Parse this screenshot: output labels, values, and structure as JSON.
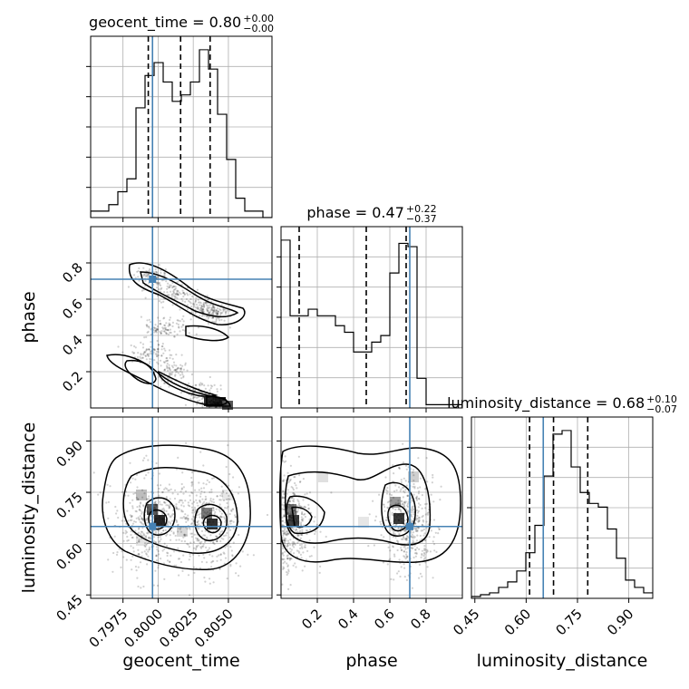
{
  "chart_data": {
    "type": "corner",
    "truth_color": "#4682b4",
    "parameters": [
      {
        "name": "geocent_time",
        "title": "geocent_time = 0.80",
        "title_value": "0.80",
        "title_plus": "+0.00",
        "title_minus": "−0.00",
        "range": [
          0.7952,
          0.8081
        ],
        "ticks": [
          0.7975,
          0.8,
          0.8025,
          0.805
        ],
        "tick_labels": [
          "0.7975",
          "0.8000",
          "0.8025",
          "0.8050"
        ],
        "truth": 0.7996,
        "quantiles": [
          0.7993,
          0.8016,
          0.8037
        ],
        "hist": {
          "edges_start": 0.7952,
          "bin_width": 0.000645,
          "counts": [
            1,
            1,
            2,
            4,
            6,
            17,
            22,
            24,
            21,
            18,
            19,
            21,
            26,
            23,
            16,
            9,
            3,
            1,
            1,
            0
          ]
        }
      },
      {
        "name": "phase",
        "title": "phase = 0.47",
        "title_value": "0.47",
        "title_plus": "+0.22",
        "title_minus": "−0.37",
        "range": [
          0.0,
          1.0
        ],
        "ticks": [
          0.2,
          0.4,
          0.6,
          0.8
        ],
        "tick_labels": [
          "0.2",
          "0.4",
          "0.6",
          "0.8"
        ],
        "truth": 0.71,
        "quantiles": [
          0.1,
          0.47,
          0.69
        ],
        "hist": {
          "edges_start": 0.0,
          "bin_width": 0.05,
          "counts": [
            51,
            28,
            28,
            30,
            28,
            28,
            25,
            23,
            17,
            17,
            20,
            22,
            41,
            50,
            49,
            9,
            1,
            1,
            1,
            1
          ]
        }
      },
      {
        "name": "luminosity_distance",
        "title": "luminosity_distance = 0.68",
        "title_value": "0.68",
        "title_plus": "+0.10",
        "title_minus": "−0.07",
        "range": [
          0.44,
          0.97
        ],
        "ticks": [
          0.45,
          0.6,
          0.75,
          0.9
        ],
        "tick_labels": [
          "0.45",
          "0.60",
          "0.75",
          "0.90"
        ],
        "truth": 0.65,
        "quantiles": [
          0.61,
          0.68,
          0.78
        ],
        "hist": {
          "edges_start": 0.44,
          "bin_width": 0.0265,
          "counts": [
            1,
            2,
            3,
            6,
            9,
            15,
            25,
            40,
            67,
            90,
            92,
            72,
            58,
            52,
            50,
            38,
            22,
            10,
            6,
            3
          ]
        }
      }
    ],
    "axis_labels": {
      "x": [
        "geocent_time",
        "phase",
        "luminosity_distance"
      ],
      "y": [
        "phase",
        "luminosity_distance"
      ]
    },
    "grid": true,
    "legend": "none"
  }
}
